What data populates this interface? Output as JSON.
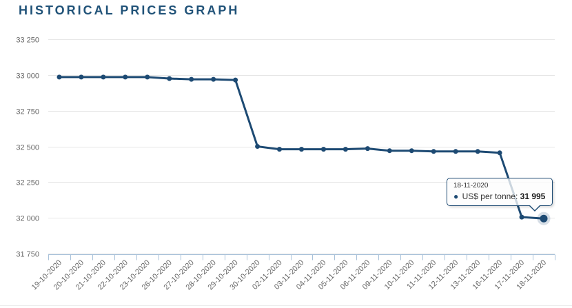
{
  "title": {
    "text": "HISTORICAL PRICES GRAPH"
  },
  "colors": {
    "accent": "#1d4a73",
    "title": "#205278",
    "grid": "#e6e6e6",
    "axis_line": "#a9c2da",
    "label": "#666666",
    "tooltip_border": "#1d4a73"
  },
  "tooltip": {
    "date": "18-11-2020",
    "marker": "●",
    "series_label": "US$ per tonne:",
    "value": "31 995"
  },
  "chart_data": {
    "type": "line",
    "title": "HISTORICAL PRICES GRAPH",
    "xlabel": "",
    "ylabel": "",
    "grid": true,
    "legend": false,
    "ylim": [
      31750,
      33250
    ],
    "ytick_step": 250,
    "ytick_labels": [
      "33 250",
      "33 000",
      "32 750",
      "32 500",
      "32 250",
      "32 000",
      "31 750"
    ],
    "categories": [
      "19-10-2020",
      "20-10-2020",
      "21-10-2020",
      "22-10-2020",
      "23-10-2020",
      "26-10-2020",
      "27-10-2020",
      "28-10-2020",
      "29-10-2020",
      "30-10-2020",
      "02-11-2020",
      "03-11-2020",
      "04-11-2020",
      "05-11-2020",
      "06-11-2020",
      "09-11-2020",
      "10-11-2020",
      "11-11-2020",
      "12-11-2020",
      "13-11-2020",
      "16-11-2020",
      "17-11-2020",
      "18-11-2020"
    ],
    "series": [
      {
        "name": "US$ per tonne",
        "values": [
          32985,
          32985,
          32985,
          32985,
          32985,
          32975,
          32970,
          32970,
          32965,
          32500,
          32480,
          32480,
          32480,
          32480,
          32485,
          32470,
          32470,
          32465,
          32465,
          32465,
          32455,
          32005,
          31995
        ]
      }
    ],
    "highlight_index": 22,
    "highlight_value_label": "31 995"
  }
}
